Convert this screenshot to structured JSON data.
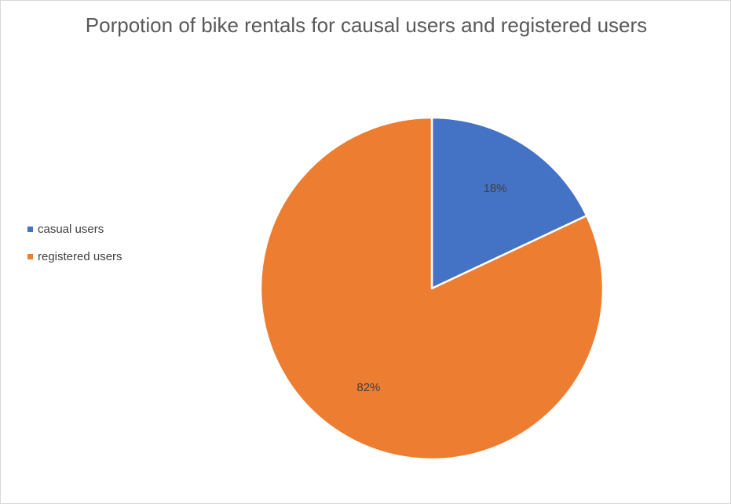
{
  "chart_data": {
    "type": "pie",
    "title": "Porpotion of bike rentals for causal users and registered users",
    "categories": [
      "casual users",
      "registered users"
    ],
    "values": [
      18,
      82
    ],
    "data_labels": [
      "18%",
      "82%"
    ],
    "colors": [
      "#4472C4",
      "#ED7D31"
    ],
    "legend_position": "left",
    "start_angle_deg": 0,
    "direction": "clockwise"
  }
}
